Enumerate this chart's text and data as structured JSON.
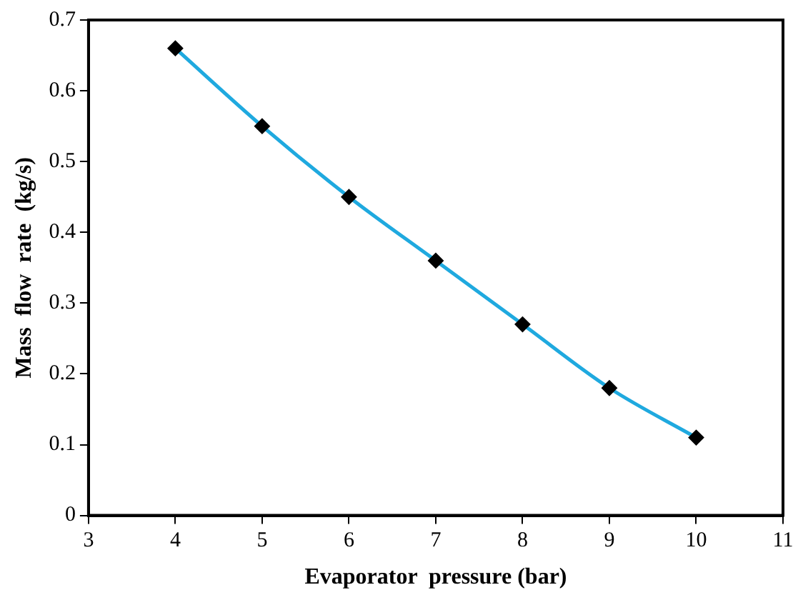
{
  "chart_data": {
    "type": "line",
    "xlabel": "Evaporator  pressure (bar)",
    "ylabel": "Mass  flow  rate  (kg/s)",
    "x": [
      4,
      5,
      6,
      7,
      8,
      9,
      10
    ],
    "series": [
      {
        "color": "#1fa9df",
        "values": [
          0.66,
          0.55,
          0.45,
          0.36,
          0.27,
          0.18,
          0.11
        ]
      }
    ],
    "marker": "diamond",
    "line_style": "solid",
    "xlim": [
      3,
      11
    ],
    "xticks": [
      3,
      4,
      5,
      6,
      7,
      8,
      9,
      10,
      11
    ],
    "ylim": [
      0,
      0.7
    ],
    "yticks": [
      0,
      0.1,
      0.2,
      0.3,
      0.4,
      0.5,
      0.6,
      0.7
    ],
    "grid": false,
    "legend": false
  }
}
